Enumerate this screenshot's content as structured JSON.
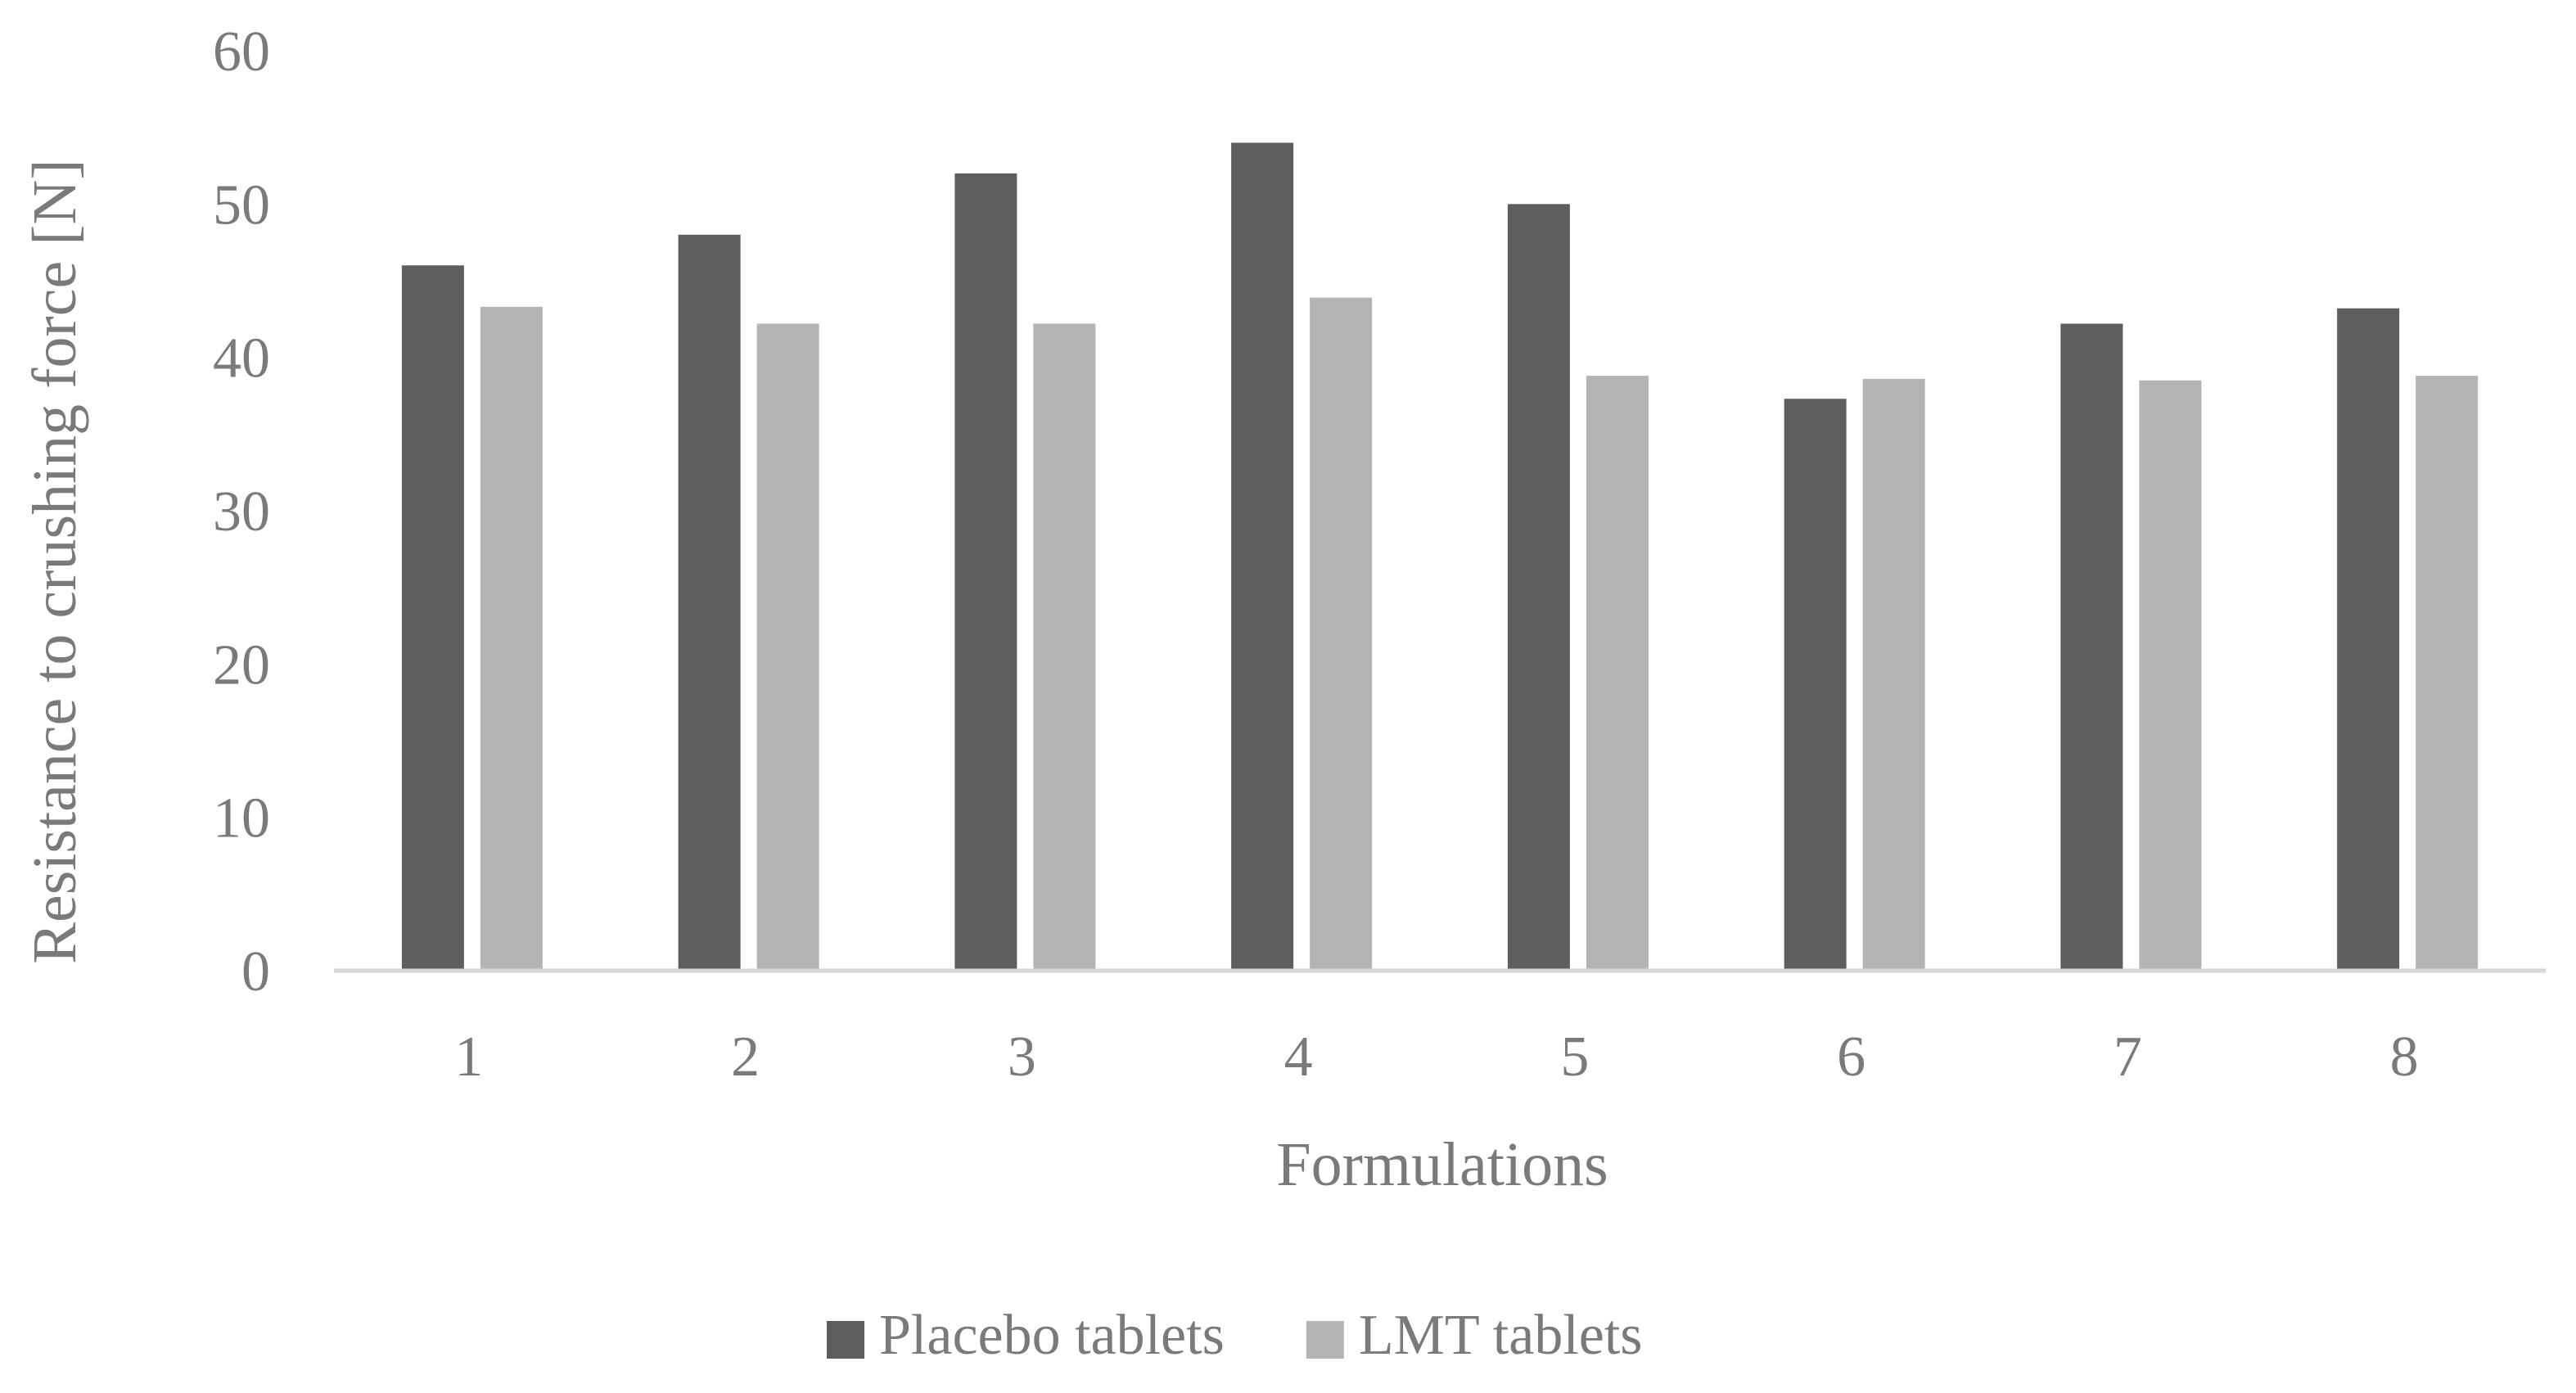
{
  "chart_data": {
    "type": "bar",
    "title": "",
    "xlabel": "Formulations",
    "ylabel": "Resistance to crushing force [N]",
    "categories": [
      "1",
      "2",
      "3",
      "4",
      "5",
      "6",
      "7",
      "8"
    ],
    "series": [
      {
        "name": "Placebo tablets",
        "color": "#5e5e5e",
        "values": [
          46,
          48,
          52,
          54,
          50,
          37.3,
          42.2,
          43.2
        ]
      },
      {
        "name": "LMT tablets",
        "color": "#b4b4b4",
        "values": [
          43.3,
          42.2,
          42.2,
          43.9,
          38.8,
          38.6,
          38.5,
          38.8
        ]
      }
    ],
    "ylim": [
      0,
      60
    ],
    "yticks": [
      "0",
      "10",
      "20",
      "30",
      "40",
      "50",
      "60"
    ],
    "grid": false,
    "legend_position": "bottom-center"
  }
}
